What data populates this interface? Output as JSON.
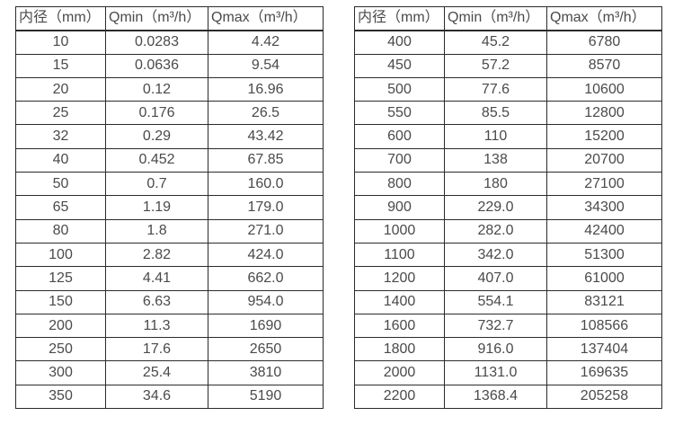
{
  "colors": {
    "background": "#ffffff",
    "border": "#2b2b2b",
    "text": "#4a4a4a"
  },
  "tables": [
    {
      "name": "flow-table-small-diameters",
      "headers": [
        "内径（mm）",
        "Qmin（m³/h）",
        "Qmax（m³/h）"
      ],
      "rows": [
        [
          "10",
          "0.0283",
          "4.42"
        ],
        [
          "15",
          "0.0636",
          "9.54"
        ],
        [
          "20",
          "0.12",
          "16.96"
        ],
        [
          "25",
          "0.176",
          "26.5"
        ],
        [
          "32",
          "0.29",
          "43.42"
        ],
        [
          "40",
          "0.452",
          "67.85"
        ],
        [
          "50",
          "0.7",
          "160.0"
        ],
        [
          "65",
          "1.19",
          "179.0"
        ],
        [
          "80",
          "1.8",
          "271.0"
        ],
        [
          "100",
          "2.82",
          "424.0"
        ],
        [
          "125",
          "4.41",
          "662.0"
        ],
        [
          "150",
          "6.63",
          "954.0"
        ],
        [
          "200",
          "11.3",
          "1690"
        ],
        [
          "250",
          "17.6",
          "2650"
        ],
        [
          "300",
          "25.4",
          "3810"
        ],
        [
          "350",
          "34.6",
          "5190"
        ]
      ]
    },
    {
      "name": "flow-table-large-diameters",
      "headers": [
        "内径（mm）",
        "Qmin（m³/h）",
        "Qmax（m³/h）"
      ],
      "rows": [
        [
          "400",
          "45.2",
          "6780"
        ],
        [
          "450",
          "57.2",
          "8570"
        ],
        [
          "500",
          "77.6",
          "10600"
        ],
        [
          "550",
          "85.5",
          "12800"
        ],
        [
          "600",
          "110",
          "15200"
        ],
        [
          "700",
          "138",
          "20700"
        ],
        [
          "800",
          "180",
          "27100"
        ],
        [
          "900",
          "229.0",
          "34300"
        ],
        [
          "1000",
          "282.0",
          "42400"
        ],
        [
          "1100",
          "342.0",
          "51300"
        ],
        [
          "1200",
          "407.0",
          "61000"
        ],
        [
          "1400",
          "554.1",
          "83121"
        ],
        [
          "1600",
          "732.7",
          "108566"
        ],
        [
          "1800",
          "916.0",
          "137404"
        ],
        [
          "2000",
          "1131.0",
          "169635"
        ],
        [
          "2200",
          "1368.4",
          "205258"
        ]
      ]
    }
  ]
}
